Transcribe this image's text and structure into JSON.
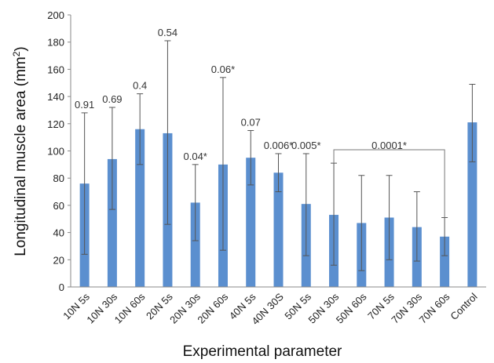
{
  "chart_data": {
    "type": "bar",
    "xlabel": "Experimental parameter",
    "ylabel_main": "Longitudinal muscle area (mm",
    "ylabel_sup": "2",
    "ylabel_close": ")",
    "ylim": [
      0,
      200
    ],
    "yticks": [
      0,
      20,
      40,
      60,
      80,
      100,
      120,
      140,
      160,
      180,
      200
    ],
    "grid": false,
    "bar_color": "#5b8fcf",
    "error_color": "#555555",
    "categories": [
      "10N 5s",
      "10N 30s",
      "10N 60s",
      "20N 5s",
      "20N 30s",
      "20N 60s",
      "40N 5s",
      "40N 30S",
      "50N 5s",
      "50N 30s",
      "50N 60s",
      "70N 5s",
      "70N 30s",
      "70N 60s",
      "Control"
    ],
    "values": [
      76,
      94,
      116,
      113,
      62,
      90,
      95,
      84,
      61,
      53,
      47,
      51,
      44,
      37,
      121
    ],
    "error_upper": [
      128,
      132,
      142,
      181,
      90,
      154,
      115,
      98,
      98,
      91,
      82,
      82,
      70,
      51,
      149
    ],
    "error_lower": [
      24,
      57,
      90,
      46,
      34,
      27,
      75,
      70,
      23,
      16,
      12,
      20,
      19,
      23,
      92
    ],
    "annotations": [
      "0.91",
      "0.69",
      "0.4",
      "0.54",
      "0.04*",
      "0.06*",
      "0.07",
      "0.006*",
      "0.005*",
      "",
      "",
      "",
      "",
      "",
      ""
    ],
    "bracket": {
      "from_index": 9,
      "to_index": 13,
      "label": "0.0001*"
    }
  }
}
